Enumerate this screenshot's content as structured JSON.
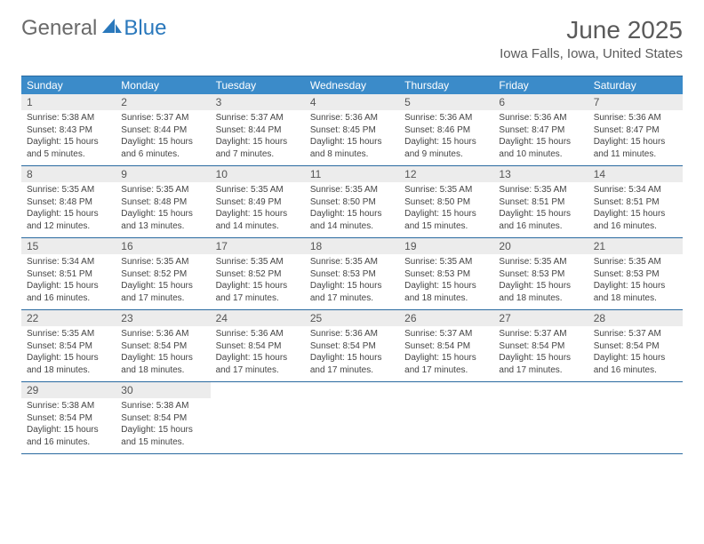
{
  "brand": {
    "part1": "General",
    "part2": "Blue"
  },
  "title": "June 2025",
  "location": "Iowa Falls, Iowa, United States",
  "colors": {
    "header_bg": "#3b8bc9",
    "border": "#2a6aa0",
    "daynum_bg": "#ececec",
    "text": "#444444",
    "title_text": "#5a5a5a",
    "logo_gray": "#6a6a6a",
    "logo_blue": "#2a78bc"
  },
  "weekdays": [
    "Sunday",
    "Monday",
    "Tuesday",
    "Wednesday",
    "Thursday",
    "Friday",
    "Saturday"
  ],
  "labels": {
    "sunrise": "Sunrise:",
    "sunset": "Sunset:",
    "daylight": "Daylight:"
  },
  "days": [
    {
      "n": 1,
      "sunrise": "5:38 AM",
      "sunset": "8:43 PM",
      "daylight": "15 hours and 5 minutes."
    },
    {
      "n": 2,
      "sunrise": "5:37 AM",
      "sunset": "8:44 PM",
      "daylight": "15 hours and 6 minutes."
    },
    {
      "n": 3,
      "sunrise": "5:37 AM",
      "sunset": "8:44 PM",
      "daylight": "15 hours and 7 minutes."
    },
    {
      "n": 4,
      "sunrise": "5:36 AM",
      "sunset": "8:45 PM",
      "daylight": "15 hours and 8 minutes."
    },
    {
      "n": 5,
      "sunrise": "5:36 AM",
      "sunset": "8:46 PM",
      "daylight": "15 hours and 9 minutes."
    },
    {
      "n": 6,
      "sunrise": "5:36 AM",
      "sunset": "8:47 PM",
      "daylight": "15 hours and 10 minutes."
    },
    {
      "n": 7,
      "sunrise": "5:36 AM",
      "sunset": "8:47 PM",
      "daylight": "15 hours and 11 minutes."
    },
    {
      "n": 8,
      "sunrise": "5:35 AM",
      "sunset": "8:48 PM",
      "daylight": "15 hours and 12 minutes."
    },
    {
      "n": 9,
      "sunrise": "5:35 AM",
      "sunset": "8:48 PM",
      "daylight": "15 hours and 13 minutes."
    },
    {
      "n": 10,
      "sunrise": "5:35 AM",
      "sunset": "8:49 PM",
      "daylight": "15 hours and 14 minutes."
    },
    {
      "n": 11,
      "sunrise": "5:35 AM",
      "sunset": "8:50 PM",
      "daylight": "15 hours and 14 minutes."
    },
    {
      "n": 12,
      "sunrise": "5:35 AM",
      "sunset": "8:50 PM",
      "daylight": "15 hours and 15 minutes."
    },
    {
      "n": 13,
      "sunrise": "5:35 AM",
      "sunset": "8:51 PM",
      "daylight": "15 hours and 16 minutes."
    },
    {
      "n": 14,
      "sunrise": "5:34 AM",
      "sunset": "8:51 PM",
      "daylight": "15 hours and 16 minutes."
    },
    {
      "n": 15,
      "sunrise": "5:34 AM",
      "sunset": "8:51 PM",
      "daylight": "15 hours and 16 minutes."
    },
    {
      "n": 16,
      "sunrise": "5:35 AM",
      "sunset": "8:52 PM",
      "daylight": "15 hours and 17 minutes."
    },
    {
      "n": 17,
      "sunrise": "5:35 AM",
      "sunset": "8:52 PM",
      "daylight": "15 hours and 17 minutes."
    },
    {
      "n": 18,
      "sunrise": "5:35 AM",
      "sunset": "8:53 PM",
      "daylight": "15 hours and 17 minutes."
    },
    {
      "n": 19,
      "sunrise": "5:35 AM",
      "sunset": "8:53 PM",
      "daylight": "15 hours and 18 minutes."
    },
    {
      "n": 20,
      "sunrise": "5:35 AM",
      "sunset": "8:53 PM",
      "daylight": "15 hours and 18 minutes."
    },
    {
      "n": 21,
      "sunrise": "5:35 AM",
      "sunset": "8:53 PM",
      "daylight": "15 hours and 18 minutes."
    },
    {
      "n": 22,
      "sunrise": "5:35 AM",
      "sunset": "8:54 PM",
      "daylight": "15 hours and 18 minutes."
    },
    {
      "n": 23,
      "sunrise": "5:36 AM",
      "sunset": "8:54 PM",
      "daylight": "15 hours and 18 minutes."
    },
    {
      "n": 24,
      "sunrise": "5:36 AM",
      "sunset": "8:54 PM",
      "daylight": "15 hours and 17 minutes."
    },
    {
      "n": 25,
      "sunrise": "5:36 AM",
      "sunset": "8:54 PM",
      "daylight": "15 hours and 17 minutes."
    },
    {
      "n": 26,
      "sunrise": "5:37 AM",
      "sunset": "8:54 PM",
      "daylight": "15 hours and 17 minutes."
    },
    {
      "n": 27,
      "sunrise": "5:37 AM",
      "sunset": "8:54 PM",
      "daylight": "15 hours and 17 minutes."
    },
    {
      "n": 28,
      "sunrise": "5:37 AM",
      "sunset": "8:54 PM",
      "daylight": "15 hours and 16 minutes."
    },
    {
      "n": 29,
      "sunrise": "5:38 AM",
      "sunset": "8:54 PM",
      "daylight": "15 hours and 16 minutes."
    },
    {
      "n": 30,
      "sunrise": "5:38 AM",
      "sunset": "8:54 PM",
      "daylight": "15 hours and 15 minutes."
    }
  ],
  "layout": {
    "columns": 7,
    "start_weekday": 0,
    "cell_font_size": 10,
    "daynum_font_size": 12,
    "weekday_font_size": 12
  }
}
